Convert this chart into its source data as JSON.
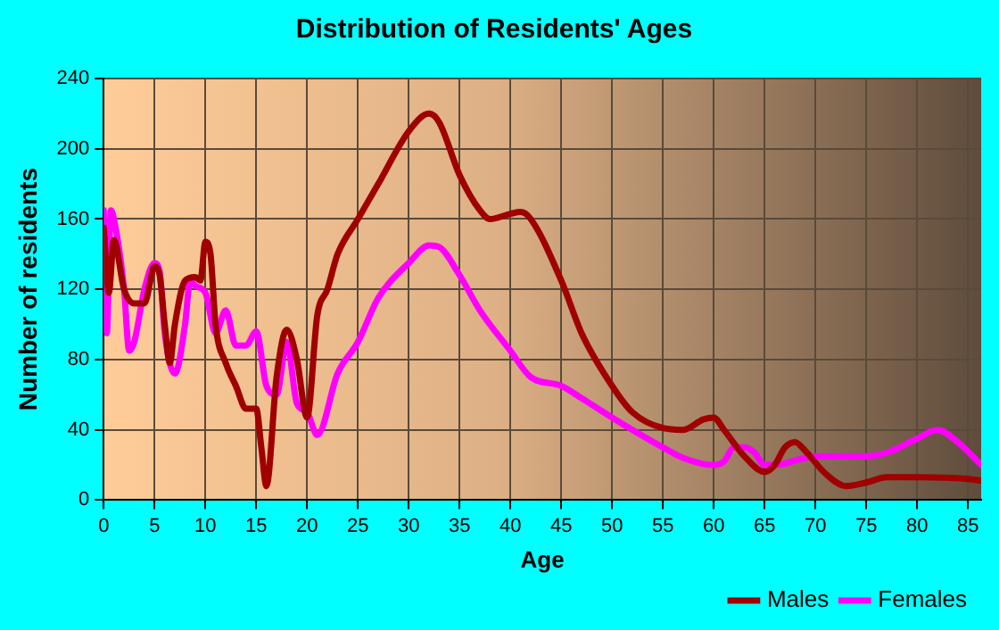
{
  "chart_data": {
    "type": "line",
    "title": "Distribution of Residents' Ages",
    "xlabel": "Age",
    "ylabel": "Number of residents",
    "xlim": [
      0,
      86.3
    ],
    "xticks": [
      0,
      5,
      10,
      15,
      20,
      25,
      30,
      35,
      40,
      45,
      50,
      55,
      60,
      65,
      70,
      75,
      80,
      85
    ],
    "ylim": [
      0,
      240
    ],
    "yticks": [
      0,
      40,
      80,
      120,
      160,
      200,
      240
    ],
    "grid": true,
    "legend": "bottom right",
    "marker": "none",
    "line_style": "solid",
    "series": [
      {
        "name": "Males",
        "color": "#a00000",
        "x": [
          0,
          0.5,
          1,
          2,
          3,
          4,
          5,
          5.5,
          6,
          6.5,
          7,
          8,
          9,
          9.5,
          10,
          10.5,
          11,
          12,
          13,
          14,
          15,
          15.5,
          16,
          17,
          18,
          19,
          20,
          21,
          22,
          23,
          25,
          27,
          30,
          32,
          33,
          35,
          37,
          38,
          40,
          41,
          42,
          45,
          47,
          50,
          52,
          55,
          57,
          59,
          60,
          61,
          63,
          65,
          66,
          67,
          68,
          69,
          71,
          73,
          75,
          77,
          80,
          85,
          86.3
        ],
        "values": [
          155,
          118,
          148,
          120,
          112,
          112,
          133,
          128,
          100,
          78,
          100,
          125,
          127,
          125,
          147,
          140,
          100,
          78,
          65,
          52,
          52,
          30,
          8,
          70,
          97,
          80,
          47,
          105,
          120,
          140,
          160,
          180,
          210,
          220,
          215,
          185,
          165,
          160,
          163,
          164,
          160,
          125,
          95,
          65,
          50,
          41,
          40,
          46,
          47,
          40,
          25,
          16,
          20,
          30,
          33,
          28,
          15,
          8,
          10,
          13,
          13,
          12,
          11
        ]
      },
      {
        "name": "Females",
        "color": "#ff00ff",
        "x": [
          0,
          0.3,
          0.7,
          1,
          2,
          2.5,
          3,
          4,
          5,
          5.5,
          6,
          7,
          8,
          8.5,
          9,
          10,
          11,
          12,
          13,
          14,
          15,
          16,
          17,
          18,
          19,
          20,
          21,
          23,
          25,
          27,
          30,
          32,
          33,
          35,
          37,
          40,
          42,
          45,
          47,
          50,
          55,
          57,
          60,
          61,
          62,
          63,
          64,
          65,
          66,
          70,
          75,
          77,
          80,
          82,
          84,
          86.3
        ],
        "values": [
          165,
          95,
          165,
          160,
          120,
          85,
          90,
          120,
          135,
          130,
          95,
          72,
          100,
          125,
          122,
          118,
          95,
          108,
          88,
          88,
          96,
          65,
          60,
          90,
          55,
          50,
          37,
          72,
          90,
          115,
          135,
          145,
          144,
          128,
          108,
          85,
          70,
          65,
          58,
          47,
          30,
          24,
          20,
          22,
          30,
          30,
          27,
          20,
          20,
          25,
          25,
          27,
          35,
          40,
          33,
          20
        ]
      }
    ]
  }
}
